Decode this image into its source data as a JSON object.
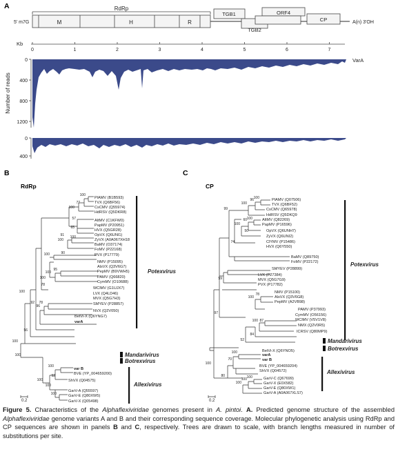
{
  "panel_a": {
    "letter": "A",
    "five_prime": "5' m7G",
    "three_prime": "A(n) 3'OH",
    "rdrp_label": "RdRp",
    "domains": [
      "M",
      "H",
      "R"
    ],
    "orfs": [
      "TGB1",
      "TGB2",
      "ORF4",
      "CP"
    ],
    "kb_label": "Kb",
    "kb_ticks": [
      "0",
      "1",
      "2",
      "3",
      "4",
      "5",
      "6",
      "7"
    ],
    "ylabel": "Number of reads",
    "varA_label": "VarA",
    "yticks_top": [
      "0",
      "400",
      "800",
      "1200"
    ],
    "yticks_bottom": [
      "0",
      "400"
    ],
    "fill_color": "#3b4a8a"
  },
  "panel_b": {
    "letter": "B",
    "title": "RdRp",
    "scale": "0.2",
    "groups": [
      "Potexvirus",
      "Mandarivirus",
      "Botrexvirus",
      "Allexivirus"
    ],
    "taxa": [
      "PlAMV (B1B593)",
      "TVX (Q6BF56)",
      "CsCMV (Q55974)",
      "HdRSV (Q5DKR8)",
      "AltMV (C1KFW0)",
      "PapMV (P20951)",
      "HVX (Q5GR28)",
      "OpVX (Q6UNI1)",
      "ZyVX (A0A067XH18",
      "BaMV (O37174)",
      "FoMV (P22168)",
      "PVX (P17779)",
      "NMV (P15095)",
      "AlsVX (Q3V6G7)",
      "PepMV (B9VWH5)",
      "PAMV (Q66820)",
      "CymMV (O10688)",
      "WClMV (G1UJX7)",
      "LVX (Q4LD46)",
      "MVX (Q5G7H3)",
      "SMYEV (P28857)",
      "NVX (Q2V050)",
      "BetVi-X (Q6YNG7)",
      "varA",
      "var B",
      "BVE (YP_004659200)",
      "ShVX (Q04575)",
      "GarV-A (Q55597)",
      "GarV-E (Q80XW5)",
      "GarV-X (Q05498)"
    ],
    "supports": [
      "100",
      "77",
      "100",
      "57",
      "65",
      "100",
      "91",
      "100",
      "90",
      "100",
      "95",
      "100",
      "78",
      "100",
      "96",
      "78",
      "56",
      "100",
      "100",
      "92",
      "100",
      "100",
      "100",
      "92",
      "100",
      "100"
    ]
  },
  "panel_c": {
    "letter": "C",
    "title": "CP",
    "scale": "0.2",
    "groups": [
      "Potexvirus",
      "Mandarivirus",
      "Botrexvirus",
      "Allexivirus"
    ],
    "taxa": [
      "PlAMV (Q07506)",
      "TVX (Q6BF52)",
      "CsCMV (Q65978)",
      "HdRSV (Q5DKQ9",
      "AltMV (Q82269)",
      "PapMV (P16596)",
      "OpVX (Q6UNH7)",
      "ZyVX (Q6UNI2)",
      "ClYMV (P15486)",
      "HVX (Q6Y550)",
      "BaMV (Q89750)",
      "FoMV (P22172)",
      "SMYEV (P28899)",
      "LVX (P27384)",
      "MVX (Q5G7G9)",
      "PVX (P17782)",
      "NMV (P15100)",
      "AlsVX (Q3V6G8)",
      "PepMV (A2VB98)",
      "PAMV (P37993)",
      "CymMV (O56156)",
      "WClMV (V5V1V8)",
      "NMX (Q2V0R5)",
      "ICRSV (Q80MP9)",
      "BetVi-X (Q6YNO5)",
      "varA",
      "var B",
      "BVE (YP_004659204)",
      "ShVX (Q04572)",
      "GarV-C (Q67699)",
      "GarV-X (E0X582)",
      "GarV-E (Q80XW1)",
      "GarV-A (A0A067XLS7)"
    ],
    "supports": [
      "100",
      "96",
      "100",
      "50",
      "100",
      "74",
      "60",
      "100",
      "99",
      "59",
      "78",
      "100",
      "87",
      "100",
      "84",
      "52",
      "100",
      "70",
      "100",
      "100",
      "100",
      "80",
      "97",
      "100"
    ]
  },
  "caption": {
    "label": "Figure 5.",
    "t1": " Characteristics of the ",
    "i1": "Alphaflexiviridae",
    "t2": " genomes present in ",
    "i2": "A. pintoi",
    "t3": ". ",
    "b1": "A.",
    "t4": " Predicted genome structure of the assembled ",
    "i3": "Alphaflexiviridae",
    "t5": " genome variants A and B and their corresponding sequence coverage. Molecular phylogenetic analysis using RdRp and CP sequences are shown in panels ",
    "b2": "B",
    "t6": " and ",
    "b3": "C",
    "t7": ", respectively. Trees are drawn to scale, with branch lengths measured in number of substitutions per site."
  }
}
